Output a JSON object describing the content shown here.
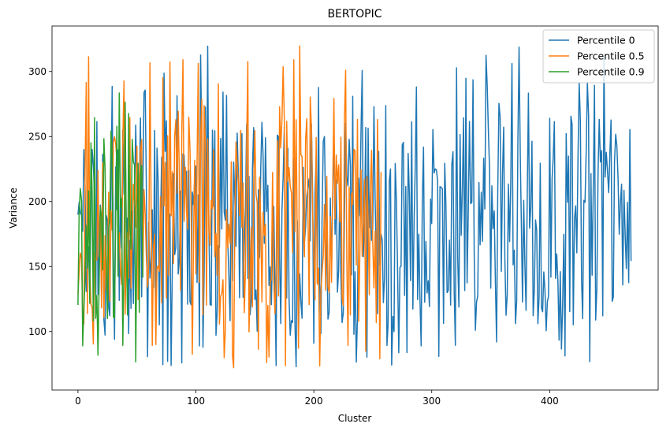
{
  "chart_data": {
    "type": "line",
    "title": "BERTOPIC",
    "xlabel": "Cluster",
    "ylabel": "Variance",
    "xlim": [
      -22,
      492
    ],
    "ylim": [
      55,
      335
    ],
    "xticks": [
      0,
      100,
      200,
      300,
      400
    ],
    "yticks": [
      100,
      150,
      200,
      250,
      300
    ],
    "grid": false,
    "legend_position": "top-right",
    "series": [
      {
        "name": "Percentile 0",
        "color": "#1f77b4",
        "length": 470
      },
      {
        "name": "Percentile 0.5",
        "color": "#ff7f0e",
        "length": 258
      },
      {
        "name": "Percentile 0.9",
        "color": "#2ca02c",
        "length": 56
      }
    ]
  }
}
